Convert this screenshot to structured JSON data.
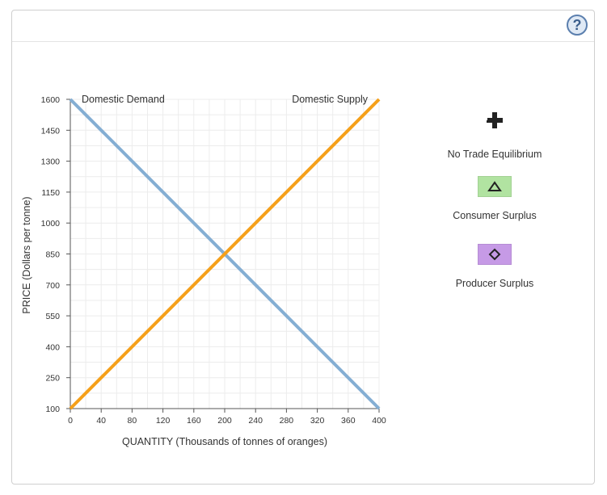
{
  "help_label": "?",
  "legend": {
    "equilibrium": "No Trade Equilibrium",
    "consumer": "Consumer Surplus",
    "producer": "Producer Surplus"
  },
  "colors": {
    "demand": "#84aed3",
    "supply": "#f5a01a",
    "consumer_swatch": "#b1e3a1",
    "producer_swatch": "#c69ae6",
    "grid": "#ececec",
    "axis": "#555555",
    "help_border": "#5b7fae"
  },
  "chart_data": {
    "type": "line",
    "xlabel": "QUANTITY (Thousands of tonnes of oranges)",
    "ylabel": "PRICE (Dollars per tonne)",
    "xlim": [
      0,
      400
    ],
    "ylim": [
      100,
      1600
    ],
    "xticks": [
      0,
      40,
      80,
      120,
      160,
      200,
      240,
      280,
      320,
      360,
      400
    ],
    "yticks": [
      100,
      250,
      400,
      550,
      700,
      850,
      1000,
      1150,
      1300,
      1450,
      1600
    ],
    "grid": true,
    "series": [
      {
        "name": "Domestic Demand",
        "color": "#84aed3",
        "x": [
          0,
          400
        ],
        "y": [
          1600,
          100
        ]
      },
      {
        "name": "Domestic Supply",
        "color": "#f5a01a",
        "x": [
          0,
          400
        ],
        "y": [
          100,
          1600
        ]
      }
    ]
  }
}
